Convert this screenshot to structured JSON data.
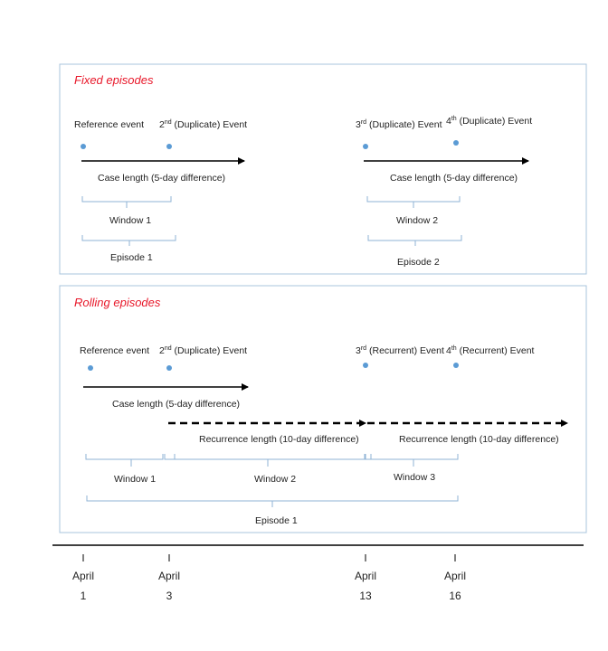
{
  "fixed": {
    "title": "Fixed episodes",
    "events": [
      {
        "pre": "Reference event",
        "sup": "",
        "post": ""
      },
      {
        "pre": "2",
        "sup": "nd",
        "post": " (Duplicate) Event"
      },
      {
        "pre": "3",
        "sup": "rd",
        "post": " (Duplicate) Event"
      },
      {
        "pre": "4",
        "sup": "th",
        "post": " (Duplicate) Event"
      }
    ],
    "case_length_1": "Case length (5-day difference)",
    "case_length_2": "Case length (5-day difference)",
    "window_1": "Window 1",
    "window_2": "Window 2",
    "episode_1": "Episode 1",
    "episode_2": "Episode 2"
  },
  "rolling": {
    "title": "Rolling episodes",
    "events": [
      {
        "pre": "Reference event",
        "sup": "",
        "post": ""
      },
      {
        "pre": "2",
        "sup": "nd",
        "post": " (Duplicate) Event"
      },
      {
        "pre": "3",
        "sup": "rd",
        "post": " (Recurrent) Event"
      },
      {
        "pre": "4",
        "sup": "th",
        "post": " (Recurrent) Event"
      }
    ],
    "case_length": "Case length (5-day difference)",
    "recurrence_1": "Recurrence length (10-day difference)",
    "recurrence_2": "Recurrence length (10-day difference)",
    "window_1": "Window 1",
    "window_2": "Window 2",
    "window_3": "Window 3",
    "episode_1": "Episode 1"
  },
  "timeline": [
    {
      "month": "April",
      "day": "1"
    },
    {
      "month": "April",
      "day": "3"
    },
    {
      "month": "April",
      "day": "13"
    },
    {
      "month": "April",
      "day": "16"
    }
  ],
  "colors": {
    "panel_border": "#a9c4dc",
    "bracket": "#8fb3d6",
    "dot": "#5b9bd5",
    "title": "#e8182a"
  }
}
